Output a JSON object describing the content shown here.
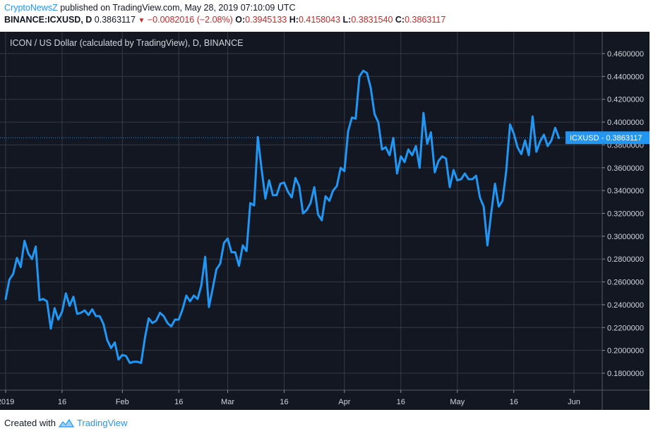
{
  "header": {
    "author": "CryptoNewsZ",
    "published_text": "published on TradingView.com, May 28, 2019 07:10:09 UTC",
    "symbol": "BINANCE:ICXUSD, D",
    "last": "0.3863117",
    "change": "−0.0082016 (−2.08%)",
    "open_label": "O:",
    "open": "0.3945133",
    "high_label": "H:",
    "high": "0.4158043",
    "low_label": "L:",
    "low": "0.3831540",
    "close_label": "C:",
    "close": "0.3863117"
  },
  "footer": {
    "created_with": "Created with",
    "brand": "TradingView"
  },
  "colors": {
    "background": "#131722",
    "grid": "#363a45",
    "line": "#2196f3",
    "axis_text": "#d1d4dc",
    "negative": "#c62828"
  },
  "chart_data": {
    "type": "line",
    "title": "ICON / US Dollar (calculated by TradingView), D, BINANCE",
    "price_label": {
      "name": "ICXUSD",
      "value": "0.3863117",
      "numeric": 0.3863117
    },
    "ylim": [
      0.17,
      0.47
    ],
    "y_ticks": [
      0.18,
      0.2,
      0.22,
      0.24,
      0.26,
      0.28,
      0.3,
      0.32,
      0.34,
      0.36,
      0.38,
      0.4,
      0.42,
      0.44,
      0.46
    ],
    "y_tick_labels": [
      "0.1800000",
      "0.2000000",
      "0.2200000",
      "0.2400000",
      "0.2600000",
      "0.2800000",
      "0.3000000",
      "0.3200000",
      "0.3400000",
      "0.3600000",
      "0.3800000",
      "0.4000000",
      "0.4200000",
      "0.4400000",
      "0.4600000"
    ],
    "x_range": [
      "2019-01-01",
      "2019-06-04"
    ],
    "x_ticks": [
      {
        "date": "2019-01-01",
        "label": "2019"
      },
      {
        "date": "2019-01-16",
        "label": "16"
      },
      {
        "date": "2019-02-01",
        "label": "Feb"
      },
      {
        "date": "2019-02-16",
        "label": "16"
      },
      {
        "date": "2019-03-01",
        "label": "Mar"
      },
      {
        "date": "2019-03-16",
        "label": "16"
      },
      {
        "date": "2019-04-01",
        "label": "Apr"
      },
      {
        "date": "2019-04-16",
        "label": "16"
      },
      {
        "date": "2019-05-01",
        "label": "May"
      },
      {
        "date": "2019-05-16",
        "label": "16"
      },
      {
        "date": "2019-06-01",
        "label": "Jun"
      }
    ],
    "series": [
      {
        "values": [
          {
            "x": "2019-01-01",
            "y": 0.245
          },
          {
            "x": "2019-01-02",
            "y": 0.262
          },
          {
            "x": "2019-01-03",
            "y": 0.267
          },
          {
            "x": "2019-01-04",
            "y": 0.281
          },
          {
            "x": "2019-01-05",
            "y": 0.273
          },
          {
            "x": "2019-01-06",
            "y": 0.296
          },
          {
            "x": "2019-01-07",
            "y": 0.285
          },
          {
            "x": "2019-01-08",
            "y": 0.28
          },
          {
            "x": "2019-01-09",
            "y": 0.291
          },
          {
            "x": "2019-01-10",
            "y": 0.244
          },
          {
            "x": "2019-01-11",
            "y": 0.245
          },
          {
            "x": "2019-01-12",
            "y": 0.243
          },
          {
            "x": "2019-01-13",
            "y": 0.219
          },
          {
            "x": "2019-01-14",
            "y": 0.237
          },
          {
            "x": "2019-01-15",
            "y": 0.227
          },
          {
            "x": "2019-01-16",
            "y": 0.234
          },
          {
            "x": "2019-01-17",
            "y": 0.25
          },
          {
            "x": "2019-01-18",
            "y": 0.239
          },
          {
            "x": "2019-01-19",
            "y": 0.247
          },
          {
            "x": "2019-01-20",
            "y": 0.232
          },
          {
            "x": "2019-01-21",
            "y": 0.233
          },
          {
            "x": "2019-01-22",
            "y": 0.235
          },
          {
            "x": "2019-01-23",
            "y": 0.231
          },
          {
            "x": "2019-01-24",
            "y": 0.236
          },
          {
            "x": "2019-01-25",
            "y": 0.23
          },
          {
            "x": "2019-01-26",
            "y": 0.23
          },
          {
            "x": "2019-01-27",
            "y": 0.223
          },
          {
            "x": "2019-01-28",
            "y": 0.209
          },
          {
            "x": "2019-01-29",
            "y": 0.202
          },
          {
            "x": "2019-01-30",
            "y": 0.207
          },
          {
            "x": "2019-01-31",
            "y": 0.192
          },
          {
            "x": "2019-02-01",
            "y": 0.196
          },
          {
            "x": "2019-02-02",
            "y": 0.195
          },
          {
            "x": "2019-02-03",
            "y": 0.189
          },
          {
            "x": "2019-02-04",
            "y": 0.19
          },
          {
            "x": "2019-02-05",
            "y": 0.19
          },
          {
            "x": "2019-02-06",
            "y": 0.189
          },
          {
            "x": "2019-02-07",
            "y": 0.211
          },
          {
            "x": "2019-02-08",
            "y": 0.228
          },
          {
            "x": "2019-02-09",
            "y": 0.224
          },
          {
            "x": "2019-02-10",
            "y": 0.226
          },
          {
            "x": "2019-02-11",
            "y": 0.233
          },
          {
            "x": "2019-02-12",
            "y": 0.23
          },
          {
            "x": "2019-02-13",
            "y": 0.224
          },
          {
            "x": "2019-02-14",
            "y": 0.221
          },
          {
            "x": "2019-02-15",
            "y": 0.227
          },
          {
            "x": "2019-02-16",
            "y": 0.227
          },
          {
            "x": "2019-02-17",
            "y": 0.236
          },
          {
            "x": "2019-02-18",
            "y": 0.248
          },
          {
            "x": "2019-02-19",
            "y": 0.243
          },
          {
            "x": "2019-02-20",
            "y": 0.248
          },
          {
            "x": "2019-02-21",
            "y": 0.245
          },
          {
            "x": "2019-02-22",
            "y": 0.257
          },
          {
            "x": "2019-02-23",
            "y": 0.282
          },
          {
            "x": "2019-02-24",
            "y": 0.238
          },
          {
            "x": "2019-02-25",
            "y": 0.254
          },
          {
            "x": "2019-02-26",
            "y": 0.271
          },
          {
            "x": "2019-02-27",
            "y": 0.276
          },
          {
            "x": "2019-02-28",
            "y": 0.294
          },
          {
            "x": "2019-03-01",
            "y": 0.298
          },
          {
            "x": "2019-03-02",
            "y": 0.286
          },
          {
            "x": "2019-03-03",
            "y": 0.286
          },
          {
            "x": "2019-03-04",
            "y": 0.274
          },
          {
            "x": "2019-03-05",
            "y": 0.292
          },
          {
            "x": "2019-03-06",
            "y": 0.287
          },
          {
            "x": "2019-03-07",
            "y": 0.329
          },
          {
            "x": "2019-03-08",
            "y": 0.327
          },
          {
            "x": "2019-03-09",
            "y": 0.387
          },
          {
            "x": "2019-03-10",
            "y": 0.359
          },
          {
            "x": "2019-03-11",
            "y": 0.333
          },
          {
            "x": "2019-03-12",
            "y": 0.349
          },
          {
            "x": "2019-03-13",
            "y": 0.336
          },
          {
            "x": "2019-03-14",
            "y": 0.336
          },
          {
            "x": "2019-03-15",
            "y": 0.346
          },
          {
            "x": "2019-03-16",
            "y": 0.347
          },
          {
            "x": "2019-03-17",
            "y": 0.339
          },
          {
            "x": "2019-03-18",
            "y": 0.334
          },
          {
            "x": "2019-03-19",
            "y": 0.351
          },
          {
            "x": "2019-03-20",
            "y": 0.344
          },
          {
            "x": "2019-03-21",
            "y": 0.32
          },
          {
            "x": "2019-03-22",
            "y": 0.323
          },
          {
            "x": "2019-03-23",
            "y": 0.329
          },
          {
            "x": "2019-03-24",
            "y": 0.343
          },
          {
            "x": "2019-03-25",
            "y": 0.319
          },
          {
            "x": "2019-03-26",
            "y": 0.314
          },
          {
            "x": "2019-03-27",
            "y": 0.335
          },
          {
            "x": "2019-03-28",
            "y": 0.331
          },
          {
            "x": "2019-03-29",
            "y": 0.34
          },
          {
            "x": "2019-03-30",
            "y": 0.344
          },
          {
            "x": "2019-03-31",
            "y": 0.36
          },
          {
            "x": "2019-04-01",
            "y": 0.357
          },
          {
            "x": "2019-04-02",
            "y": 0.392
          },
          {
            "x": "2019-04-03",
            "y": 0.404
          },
          {
            "x": "2019-04-04",
            "y": 0.403
          },
          {
            "x": "2019-04-05",
            "y": 0.44
          },
          {
            "x": "2019-04-06",
            "y": 0.445
          },
          {
            "x": "2019-04-07",
            "y": 0.443
          },
          {
            "x": "2019-04-08",
            "y": 0.43
          },
          {
            "x": "2019-04-09",
            "y": 0.407
          },
          {
            "x": "2019-04-10",
            "y": 0.4
          },
          {
            "x": "2019-04-11",
            "y": 0.376
          },
          {
            "x": "2019-04-12",
            "y": 0.378
          },
          {
            "x": "2019-04-13",
            "y": 0.371
          },
          {
            "x": "2019-04-14",
            "y": 0.386
          },
          {
            "x": "2019-04-15",
            "y": 0.355
          },
          {
            "x": "2019-04-16",
            "y": 0.37
          },
          {
            "x": "2019-04-17",
            "y": 0.365
          },
          {
            "x": "2019-04-18",
            "y": 0.376
          },
          {
            "x": "2019-04-19",
            "y": 0.371
          },
          {
            "x": "2019-04-20",
            "y": 0.379
          },
          {
            "x": "2019-04-21",
            "y": 0.36
          },
          {
            "x": "2019-04-22",
            "y": 0.408
          },
          {
            "x": "2019-04-23",
            "y": 0.381
          },
          {
            "x": "2019-04-24",
            "y": 0.391
          },
          {
            "x": "2019-04-25",
            "y": 0.356
          },
          {
            "x": "2019-04-26",
            "y": 0.366
          },
          {
            "x": "2019-04-27",
            "y": 0.37
          },
          {
            "x": "2019-04-28",
            "y": 0.368
          },
          {
            "x": "2019-04-29",
            "y": 0.343
          },
          {
            "x": "2019-04-30",
            "y": 0.358
          },
          {
            "x": "2019-05-01",
            "y": 0.349
          },
          {
            "x": "2019-05-02",
            "y": 0.35
          },
          {
            "x": "2019-05-03",
            "y": 0.355
          },
          {
            "x": "2019-05-04",
            "y": 0.35
          },
          {
            "x": "2019-05-05",
            "y": 0.35
          },
          {
            "x": "2019-05-06",
            "y": 0.353
          },
          {
            "x": "2019-05-07",
            "y": 0.334
          },
          {
            "x": "2019-05-08",
            "y": 0.326
          },
          {
            "x": "2019-05-09",
            "y": 0.292
          },
          {
            "x": "2019-05-10",
            "y": 0.32
          },
          {
            "x": "2019-05-11",
            "y": 0.346
          },
          {
            "x": "2019-05-12",
            "y": 0.326
          },
          {
            "x": "2019-05-13",
            "y": 0.331
          },
          {
            "x": "2019-05-14",
            "y": 0.357
          },
          {
            "x": "2019-05-15",
            "y": 0.398
          },
          {
            "x": "2019-05-16",
            "y": 0.39
          },
          {
            "x": "2019-05-17",
            "y": 0.378
          },
          {
            "x": "2019-05-18",
            "y": 0.372
          },
          {
            "x": "2019-05-19",
            "y": 0.384
          },
          {
            "x": "2019-05-20",
            "y": 0.371
          },
          {
            "x": "2019-05-21",
            "y": 0.405
          },
          {
            "x": "2019-05-22",
            "y": 0.374
          },
          {
            "x": "2019-05-23",
            "y": 0.383
          },
          {
            "x": "2019-05-24",
            "y": 0.389
          },
          {
            "x": "2019-05-25",
            "y": 0.379
          },
          {
            "x": "2019-05-26",
            "y": 0.384
          },
          {
            "x": "2019-05-27",
            "y": 0.395
          },
          {
            "x": "2019-05-28",
            "y": 0.386
          }
        ]
      }
    ]
  }
}
